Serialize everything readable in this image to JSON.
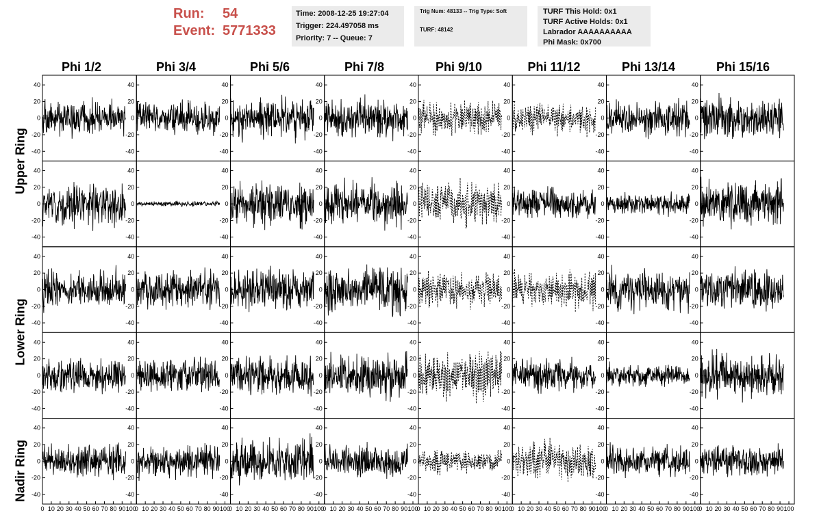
{
  "header": {
    "run_label": "Run:",
    "run_value": "54",
    "event_label": "Event:",
    "event_value": "5771333",
    "time": "Time: 2008-12-25 19:27:04",
    "trigger": "Trigger: 224.497058 ms",
    "priority_queue": "Priority: 7 -- Queue: 7",
    "trig_num_type": "Trig Num: 48133 -- Trig Type: Soft",
    "turf": "TURF: 48142",
    "turf_this_hold": "TURF This Hold: 0x1",
    "turf_active_holds": "TURF Active Holds: 0x1",
    "labrador": "Labrador AAAAAAAAAA",
    "phi_mask": "Phi Mask: 0x700"
  },
  "columns": [
    "Phi 1/2",
    "Phi 3/4",
    "Phi 5/6",
    "Phi 7/8",
    "Phi 9/10",
    "Phi 11/12",
    "Phi 13/14",
    "Phi 15/16"
  ],
  "row_labels": [
    "Upper Ring",
    "Lower Ring",
    "Nadir Ring"
  ],
  "chart_data": {
    "type": "line",
    "rows": 5,
    "cols": 8,
    "xlim": [
      0,
      100
    ],
    "ylim": [
      -50,
      50
    ],
    "y_ticks": [
      -40,
      -20,
      0,
      20,
      40
    ],
    "x_ticks": [
      0,
      10,
      20,
      30,
      40,
      50,
      60,
      70,
      80,
      90,
      100
    ],
    "x_tick_labels_bottom": [
      "0",
      "10",
      "20",
      "30",
      "40",
      "50",
      "60",
      "70",
      "80",
      "90",
      "100"
    ],
    "series": [
      {
        "row": 1,
        "col": 1,
        "amplitude": 14,
        "style": "solid"
      },
      {
        "row": 1,
        "col": 2,
        "amplitude": 13,
        "style": "solid"
      },
      {
        "row": 1,
        "col": 3,
        "amplitude": 16,
        "style": "solid"
      },
      {
        "row": 1,
        "col": 4,
        "amplitude": 15,
        "style": "solid"
      },
      {
        "row": 1,
        "col": 5,
        "amplitude": 13,
        "style": "dashed"
      },
      {
        "row": 1,
        "col": 6,
        "amplitude": 12,
        "style": "dashed"
      },
      {
        "row": 1,
        "col": 7,
        "amplitude": 15,
        "style": "solid"
      },
      {
        "row": 1,
        "col": 8,
        "amplitude": 17,
        "style": "solid"
      },
      {
        "row": 2,
        "col": 1,
        "amplitude": 17,
        "style": "solid"
      },
      {
        "row": 2,
        "col": 2,
        "amplitude": 2,
        "style": "solid"
      },
      {
        "row": 2,
        "col": 3,
        "amplitude": 17,
        "style": "solid"
      },
      {
        "row": 2,
        "col": 4,
        "amplitude": 17,
        "style": "solid"
      },
      {
        "row": 2,
        "col": 5,
        "amplitude": 18,
        "style": "dashed"
      },
      {
        "row": 2,
        "col": 6,
        "amplitude": 12,
        "style": "solid"
      },
      {
        "row": 2,
        "col": 7,
        "amplitude": 9,
        "style": "solid"
      },
      {
        "row": 2,
        "col": 8,
        "amplitude": 18,
        "style": "solid"
      },
      {
        "row": 3,
        "col": 1,
        "amplitude": 15,
        "style": "solid"
      },
      {
        "row": 3,
        "col": 2,
        "amplitude": 16,
        "style": "solid"
      },
      {
        "row": 3,
        "col": 3,
        "amplitude": 17,
        "style": "solid"
      },
      {
        "row": 3,
        "col": 4,
        "amplitude": 18,
        "style": "solid"
      },
      {
        "row": 3,
        "col": 5,
        "amplitude": 14,
        "style": "dashed"
      },
      {
        "row": 3,
        "col": 6,
        "amplitude": 15,
        "style": "dashed"
      },
      {
        "row": 3,
        "col": 7,
        "amplitude": 16,
        "style": "solid"
      },
      {
        "row": 3,
        "col": 8,
        "amplitude": 16,
        "style": "solid"
      },
      {
        "row": 4,
        "col": 1,
        "amplitude": 13,
        "style": "solid"
      },
      {
        "row": 4,
        "col": 2,
        "amplitude": 14,
        "style": "solid"
      },
      {
        "row": 4,
        "col": 3,
        "amplitude": 15,
        "style": "solid"
      },
      {
        "row": 4,
        "col": 4,
        "amplitude": 17,
        "style": "solid"
      },
      {
        "row": 4,
        "col": 5,
        "amplitude": 18,
        "style": "dashed"
      },
      {
        "row": 4,
        "col": 6,
        "amplitude": 13,
        "style": "solid"
      },
      {
        "row": 4,
        "col": 7,
        "amplitude": 9,
        "style": "solid"
      },
      {
        "row": 4,
        "col": 8,
        "amplitude": 18,
        "style": "solid"
      },
      {
        "row": 5,
        "col": 1,
        "amplitude": 13,
        "style": "solid"
      },
      {
        "row": 5,
        "col": 2,
        "amplitude": 12,
        "style": "solid"
      },
      {
        "row": 5,
        "col": 3,
        "amplitude": 18,
        "style": "solid"
      },
      {
        "row": 5,
        "col": 4,
        "amplitude": 12,
        "style": "solid"
      },
      {
        "row": 5,
        "col": 5,
        "amplitude": 9,
        "style": "dashed"
      },
      {
        "row": 5,
        "col": 6,
        "amplitude": 15,
        "style": "dashed"
      },
      {
        "row": 5,
        "col": 7,
        "amplitude": 12,
        "style": "solid"
      },
      {
        "row": 5,
        "col": 8,
        "amplitude": 12,
        "style": "solid"
      }
    ]
  }
}
